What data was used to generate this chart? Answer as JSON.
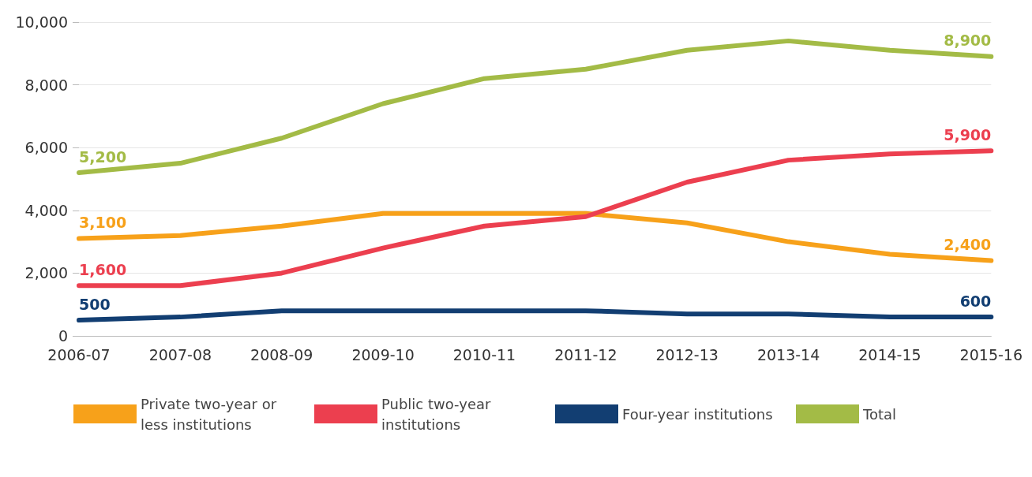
{
  "chart_data": {
    "type": "line",
    "categories": [
      "2006-07",
      "2007-08",
      "2008-09",
      "2009-10",
      "2010-11",
      "2011-12",
      "2012-13",
      "2013-14",
      "2014-15",
      "2015-16"
    ],
    "series": [
      {
        "name": "Private two-year or less institutions",
        "color": "#f7a11a",
        "values": [
          3100,
          3200,
          3500,
          3900,
          3900,
          3900,
          3600,
          3000,
          2600,
          2400
        ],
        "value_labels": [
          "3,100",
          null,
          null,
          null,
          null,
          null,
          null,
          null,
          null,
          "2,400"
        ]
      },
      {
        "name": "Public two-year institutions",
        "color": "#ec3f4f",
        "values": [
          1600,
          1600,
          2000,
          2800,
          3500,
          3800,
          4900,
          5600,
          5800,
          5900
        ],
        "value_labels": [
          "1,600",
          null,
          null,
          null,
          null,
          null,
          null,
          null,
          null,
          "5,900"
        ]
      },
      {
        "name": "Four-year institutions",
        "color": "#123e72",
        "values": [
          500,
          600,
          800,
          800,
          800,
          800,
          700,
          700,
          600,
          600
        ],
        "value_labels": [
          "500",
          null,
          null,
          null,
          null,
          null,
          null,
          null,
          null,
          "600"
        ]
      },
      {
        "name": "Total",
        "color": "#a3bb46",
        "values": [
          5200,
          5500,
          6300,
          7400,
          8200,
          8500,
          9100,
          9400,
          9100,
          8900
        ],
        "value_labels": [
          "5,200",
          null,
          null,
          null,
          null,
          null,
          null,
          null,
          null,
          "8,900"
        ]
      }
    ],
    "ylim": [
      0,
      10000
    ],
    "yticks": [
      {
        "value": 0,
        "label": "0"
      },
      {
        "value": 2000,
        "label": "2,000"
      },
      {
        "value": 4000,
        "label": "4,000"
      },
      {
        "value": 6000,
        "label": "6,000"
      },
      {
        "value": 8000,
        "label": "8,000"
      },
      {
        "value": 10000,
        "label": "10,000"
      }
    ],
    "grid": "y",
    "legend": "bottom",
    "marker": "none",
    "line_style": "solid"
  }
}
